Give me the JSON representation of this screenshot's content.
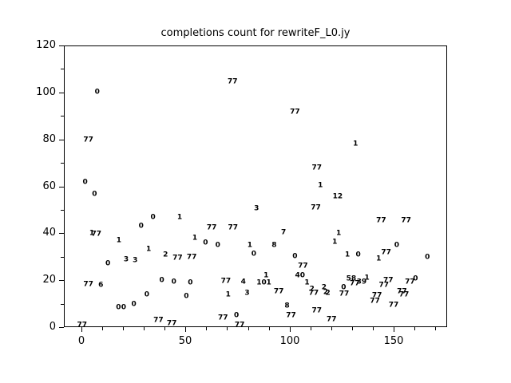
{
  "window": {
    "background_color": "#ffffff",
    "foreground_color": "#000000"
  },
  "chart_data": {
    "type": "scatter",
    "title": "completions count for rewriteF_L0.jy",
    "xlabel": "",
    "ylabel": "",
    "xlim": [
      -8.44,
      175.7
    ],
    "ylim": [
      0,
      120
    ],
    "x_major_ticks": [
      0,
      50,
      100,
      150
    ],
    "y_major_ticks": [
      0,
      20,
      40,
      60,
      80,
      100,
      120
    ],
    "x_minor_ticks": [
      10,
      20,
      30,
      40,
      60,
      70,
      80,
      90,
      110,
      120,
      130,
      140,
      160,
      170
    ],
    "y_minor_ticks": [
      10,
      30,
      50,
      70,
      90,
      110
    ],
    "grid": false,
    "legend": false,
    "marker_style": "numeric-text-labels",
    "points": [
      {
        "x": 7.6,
        "y": 100.1,
        "label": "0"
      },
      {
        "x": 72.6,
        "y": 104.3,
        "label": "77"
      },
      {
        "x": 102.6,
        "y": 91.5,
        "label": "77"
      },
      {
        "x": 3.3,
        "y": 79.6,
        "label": "77"
      },
      {
        "x": 131.7,
        "y": 77.7,
        "label": "1"
      },
      {
        "x": 113.1,
        "y": 67.5,
        "label": "77"
      },
      {
        "x": 1.8,
        "y": 61.5,
        "label": "0"
      },
      {
        "x": 114.8,
        "y": 60.3,
        "label": "1"
      },
      {
        "x": 6.3,
        "y": 56.5,
        "label": "0"
      },
      {
        "x": 123.1,
        "y": 55.3,
        "label": "12"
      },
      {
        "x": 112.6,
        "y": 50.8,
        "label": "77"
      },
      {
        "x": 84.1,
        "y": 50.4,
        "label": "3"
      },
      {
        "x": 34.4,
        "y": 46.5,
        "label": "0"
      },
      {
        "x": 47.2,
        "y": 46.7,
        "label": "1"
      },
      {
        "x": 144.0,
        "y": 45.3,
        "label": "77"
      },
      {
        "x": 156.0,
        "y": 45.3,
        "label": "77"
      },
      {
        "x": 28.7,
        "y": 42.9,
        "label": "0"
      },
      {
        "x": 62.6,
        "y": 42.2,
        "label": "77"
      },
      {
        "x": 72.8,
        "y": 42.3,
        "label": "77"
      },
      {
        "x": 5.0,
        "y": 39.9,
        "label": "1"
      },
      {
        "x": 7.2,
        "y": 39.3,
        "label": "77"
      },
      {
        "x": 97.1,
        "y": 40.2,
        "label": "7"
      },
      {
        "x": 123.6,
        "y": 39.7,
        "label": "1"
      },
      {
        "x": 18.0,
        "y": 36.8,
        "label": "1"
      },
      {
        "x": 54.5,
        "y": 37.6,
        "label": "1"
      },
      {
        "x": 59.6,
        "y": 35.7,
        "label": "0"
      },
      {
        "x": 65.5,
        "y": 34.6,
        "label": "0"
      },
      {
        "x": 80.9,
        "y": 34.8,
        "label": "1"
      },
      {
        "x": 92.6,
        "y": 34.8,
        "label": "8"
      },
      {
        "x": 121.7,
        "y": 35.9,
        "label": "1"
      },
      {
        "x": 151.5,
        "y": 34.8,
        "label": "0"
      },
      {
        "x": 32.3,
        "y": 33.1,
        "label": "1"
      },
      {
        "x": 40.4,
        "y": 30.6,
        "label": "2"
      },
      {
        "x": 46.2,
        "y": 29.3,
        "label": "77"
      },
      {
        "x": 53.0,
        "y": 29.5,
        "label": "77"
      },
      {
        "x": 82.8,
        "y": 30.8,
        "label": "0"
      },
      {
        "x": 102.6,
        "y": 30.0,
        "label": "0"
      },
      {
        "x": 127.8,
        "y": 30.6,
        "label": "1"
      },
      {
        "x": 133.0,
        "y": 30.6,
        "label": "0"
      },
      {
        "x": 146.4,
        "y": 31.7,
        "label": "77"
      },
      {
        "x": 142.8,
        "y": 28.9,
        "label": "1"
      },
      {
        "x": 166.2,
        "y": 29.5,
        "label": "0"
      },
      {
        "x": 21.5,
        "y": 28.6,
        "label": "3"
      },
      {
        "x": 25.8,
        "y": 28.3,
        "label": "3"
      },
      {
        "x": 12.7,
        "y": 26.9,
        "label": "0"
      },
      {
        "x": 106.4,
        "y": 25.9,
        "label": "77"
      },
      {
        "x": 105.0,
        "y": 21.8,
        "label": "40"
      },
      {
        "x": 88.7,
        "y": 21.9,
        "label": "1"
      },
      {
        "x": 160.5,
        "y": 20.4,
        "label": "0"
      },
      {
        "x": 129.6,
        "y": 20.3,
        "label": "58"
      },
      {
        "x": 137.2,
        "y": 20.7,
        "label": "1"
      },
      {
        "x": 147.4,
        "y": 19.8,
        "label": "77"
      },
      {
        "x": 38.6,
        "y": 19.8,
        "label": "0"
      },
      {
        "x": 157.8,
        "y": 18.9,
        "label": "77"
      },
      {
        "x": 3.3,
        "y": 17.9,
        "label": "77"
      },
      {
        "x": 9.3,
        "y": 17.8,
        "label": "6"
      },
      {
        "x": 44.4,
        "y": 19.0,
        "label": "0"
      },
      {
        "x": 52.3,
        "y": 18.7,
        "label": "0"
      },
      {
        "x": 69.4,
        "y": 19.5,
        "label": "77"
      },
      {
        "x": 77.8,
        "y": 18.9,
        "label": "4"
      },
      {
        "x": 86.5,
        "y": 18.7,
        "label": "10"
      },
      {
        "x": 90.0,
        "y": 18.7,
        "label": "1"
      },
      {
        "x": 108.4,
        "y": 18.7,
        "label": "1"
      },
      {
        "x": 134.6,
        "y": 19.0,
        "label": "39"
      },
      {
        "x": 131.3,
        "y": 18.3,
        "label": "77"
      },
      {
        "x": 145.3,
        "y": 17.8,
        "label": "77"
      },
      {
        "x": 116.6,
        "y": 16.7,
        "label": "2"
      },
      {
        "x": 110.8,
        "y": 15.9,
        "label": "2"
      },
      {
        "x": 126.0,
        "y": 16.5,
        "label": "0"
      },
      {
        "x": 117.4,
        "y": 14.5,
        "label": "2"
      },
      {
        "x": 118.4,
        "y": 14.4,
        "label": "2"
      },
      {
        "x": 111.6,
        "y": 14.2,
        "label": "77"
      },
      {
        "x": 154.0,
        "y": 15.0,
        "label": "77"
      },
      {
        "x": 155.0,
        "y": 13.6,
        "label": "77"
      },
      {
        "x": 94.8,
        "y": 15.1,
        "label": "77"
      },
      {
        "x": 79.6,
        "y": 14.4,
        "label": "3"
      },
      {
        "x": 70.5,
        "y": 13.7,
        "label": "1"
      },
      {
        "x": 31.4,
        "y": 13.6,
        "label": "0"
      },
      {
        "x": 50.4,
        "y": 13.0,
        "label": "0"
      },
      {
        "x": 126.2,
        "y": 13.8,
        "label": "77"
      },
      {
        "x": 142.0,
        "y": 13.3,
        "label": "77"
      },
      {
        "x": 141.0,
        "y": 10.8,
        "label": "77"
      },
      {
        "x": 150.0,
        "y": 9.3,
        "label": "77"
      },
      {
        "x": 98.8,
        "y": 8.7,
        "label": "8"
      },
      {
        "x": 25.2,
        "y": 9.6,
        "label": "0"
      },
      {
        "x": 17.8,
        "y": 8.2,
        "label": "0"
      },
      {
        "x": 20.3,
        "y": 8.2,
        "label": "0"
      },
      {
        "x": 113.1,
        "y": 6.8,
        "label": "77"
      },
      {
        "x": 100.7,
        "y": 4.9,
        "label": "77"
      },
      {
        "x": 74.5,
        "y": 4.8,
        "label": "0"
      },
      {
        "x": 68.0,
        "y": 3.7,
        "label": "77"
      },
      {
        "x": 37.0,
        "y": 2.6,
        "label": "77"
      },
      {
        "x": 120.2,
        "y": 3.1,
        "label": "77"
      },
      {
        "x": 43.4,
        "y": 1.4,
        "label": "77"
      },
      {
        "x": 76.0,
        "y": 0.6,
        "label": "77"
      },
      {
        "x": 0.3,
        "y": 0.8,
        "label": "77"
      }
    ]
  }
}
